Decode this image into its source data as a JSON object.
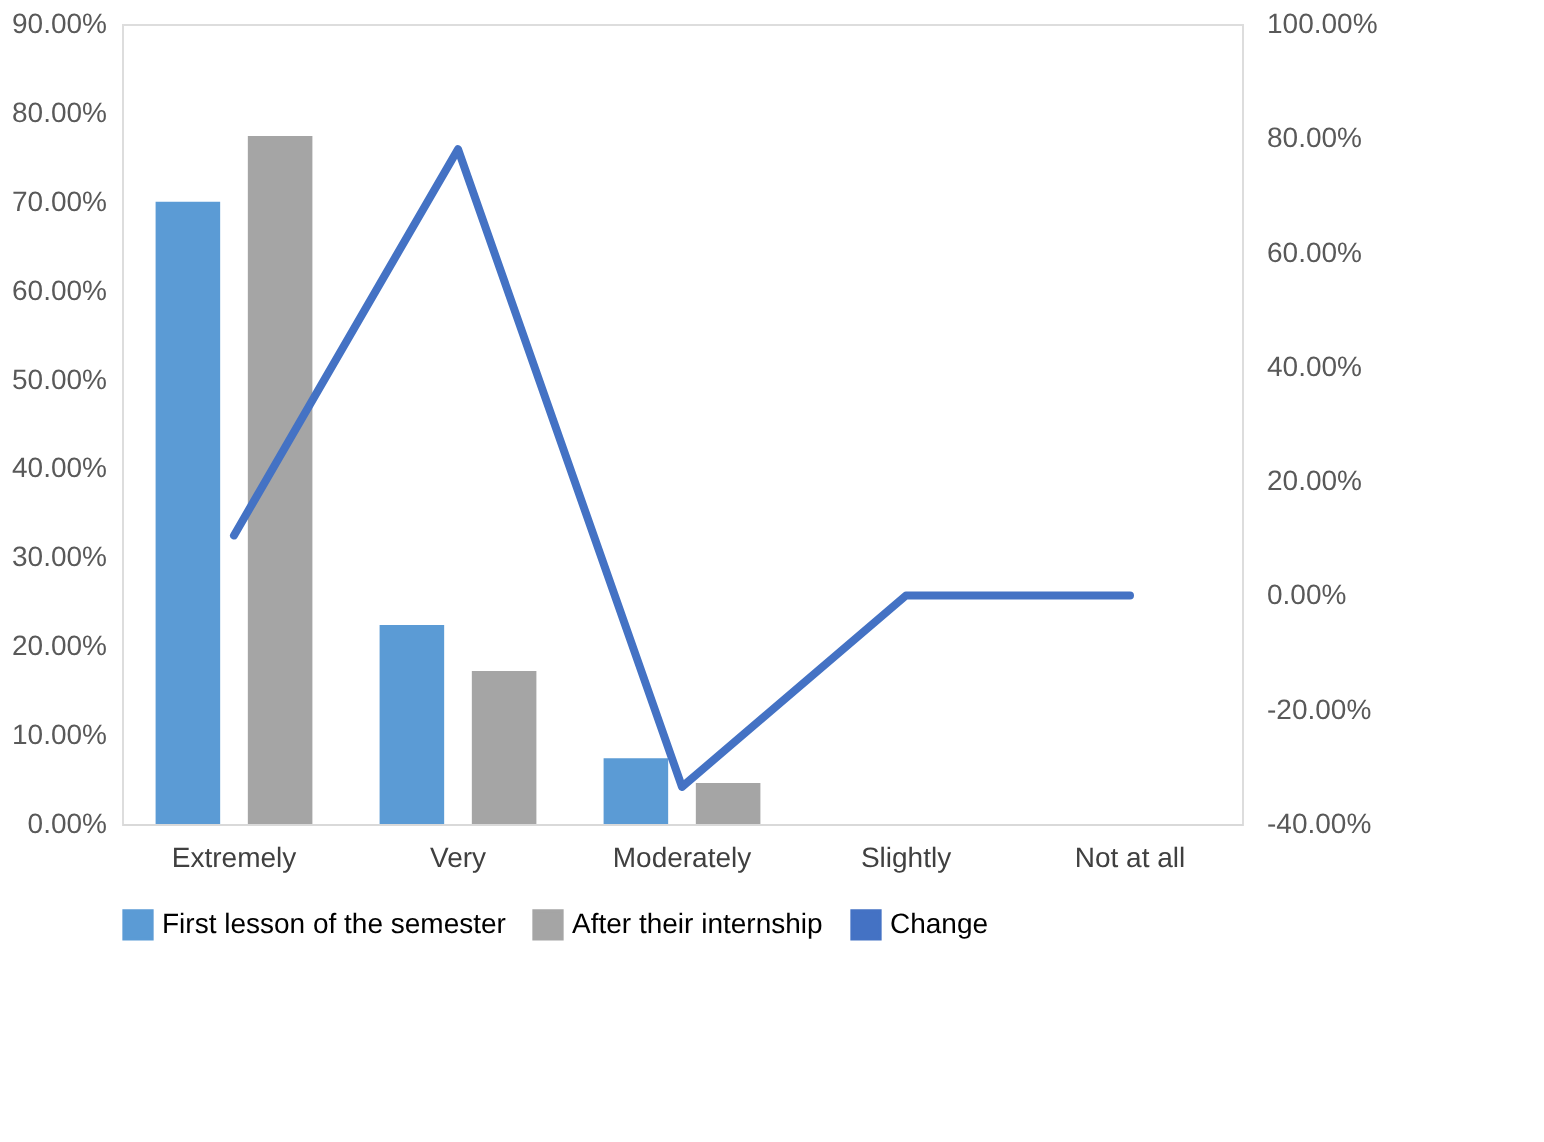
{
  "chart_data": {
    "type": "bar",
    "categories": [
      "Extremely",
      "Very",
      "Moderately",
      "Slightly",
      "Not at all"
    ],
    "series": [
      {
        "name": "First lesson of the semester",
        "color": "#5b9bd5",
        "values": [
          70.0,
          22.4,
          7.4,
          null,
          null
        ]
      },
      {
        "name": "After their internship",
        "color": "#a5a5a5",
        "values": [
          77.4,
          17.2,
          4.6,
          null,
          null
        ]
      },
      {
        "name": "Change",
        "color": "#4472c4",
        "type": "line",
        "axis": "y2",
        "values": [
          10.5,
          78.1,
          -33.5,
          0,
          0
        ]
      }
    ],
    "ylim": [
      0,
      90
    ],
    "yticks": [
      {
        "value": 0,
        "label": "0.00%"
      },
      {
        "value": 10,
        "label": "10.00%"
      },
      {
        "value": 20,
        "label": "20.00%"
      },
      {
        "value": 30,
        "label": "30.00%"
      },
      {
        "value": 40,
        "label": "40.00%"
      },
      {
        "value": 50,
        "label": "50.00%"
      },
      {
        "value": 60,
        "label": "60.00%"
      },
      {
        "value": 70,
        "label": "70.00%"
      },
      {
        "value": 80,
        "label": "80.00%"
      },
      {
        "value": 90,
        "label": "90.00%"
      }
    ],
    "y2lim": [
      -40,
      100
    ],
    "y2ticks": [
      {
        "value": -40,
        "label": "-40.00%"
      },
      {
        "value": -20,
        "label": "-20.00%"
      },
      {
        "value": 0,
        "label": "0.00%"
      },
      {
        "value": 20,
        "label": "20.00%"
      },
      {
        "value": 40,
        "label": "40.00%"
      },
      {
        "value": 60,
        "label": "60.00%"
      },
      {
        "value": 80,
        "label": "80.00%"
      },
      {
        "value": 100,
        "label": "100.00%"
      }
    ],
    "legend": "bottom",
    "grid": false
  }
}
